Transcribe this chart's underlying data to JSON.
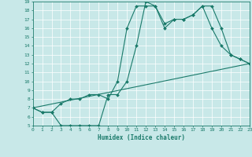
{
  "xlabel": "Humidex (Indice chaleur)",
  "bg_color": "#c8e8e8",
  "line_color": "#1a7a6a",
  "grid_color": "#b0cccc",
  "xlim": [
    0,
    23
  ],
  "ylim": [
    5,
    19
  ],
  "xticks": [
    0,
    1,
    2,
    3,
    4,
    5,
    6,
    7,
    8,
    9,
    10,
    11,
    12,
    13,
    14,
    15,
    16,
    17,
    18,
    19,
    20,
    21,
    22,
    23
  ],
  "yticks": [
    5,
    6,
    7,
    8,
    9,
    10,
    11,
    12,
    13,
    14,
    15,
    16,
    17,
    18,
    19
  ],
  "line1_x": [
    0,
    1,
    2,
    3,
    4,
    5,
    6,
    7,
    8,
    9,
    10,
    11,
    12,
    13,
    14,
    15,
    16,
    17,
    18,
    19,
    20,
    21,
    22,
    23
  ],
  "line1_y": [
    7,
    6.5,
    6.5,
    5,
    5,
    5,
    5,
    5,
    8.5,
    8.5,
    10,
    14,
    19,
    18.5,
    16.5,
    17,
    17,
    17.5,
    18.5,
    16,
    14,
    13,
    12.5,
    12
  ],
  "line2_x": [
    0,
    1,
    2,
    3,
    4,
    5,
    6,
    7,
    8,
    9,
    10,
    11,
    12,
    13,
    14,
    15,
    16,
    17,
    18,
    19,
    20,
    21,
    22,
    23
  ],
  "line2_y": [
    7,
    6.5,
    6.5,
    7.5,
    8,
    8,
    8.5,
    8.5,
    8,
    10,
    16,
    18.5,
    18.5,
    18.5,
    16,
    17,
    17,
    17.5,
    18.5,
    18.5,
    16,
    13,
    12.5,
    12
  ],
  "line3_x": [
    0,
    23
  ],
  "line3_y": [
    7,
    12
  ],
  "marker_size": 2.0,
  "line_width": 0.8,
  "xlabel_fontsize": 5.5,
  "tick_fontsize": 4.5
}
